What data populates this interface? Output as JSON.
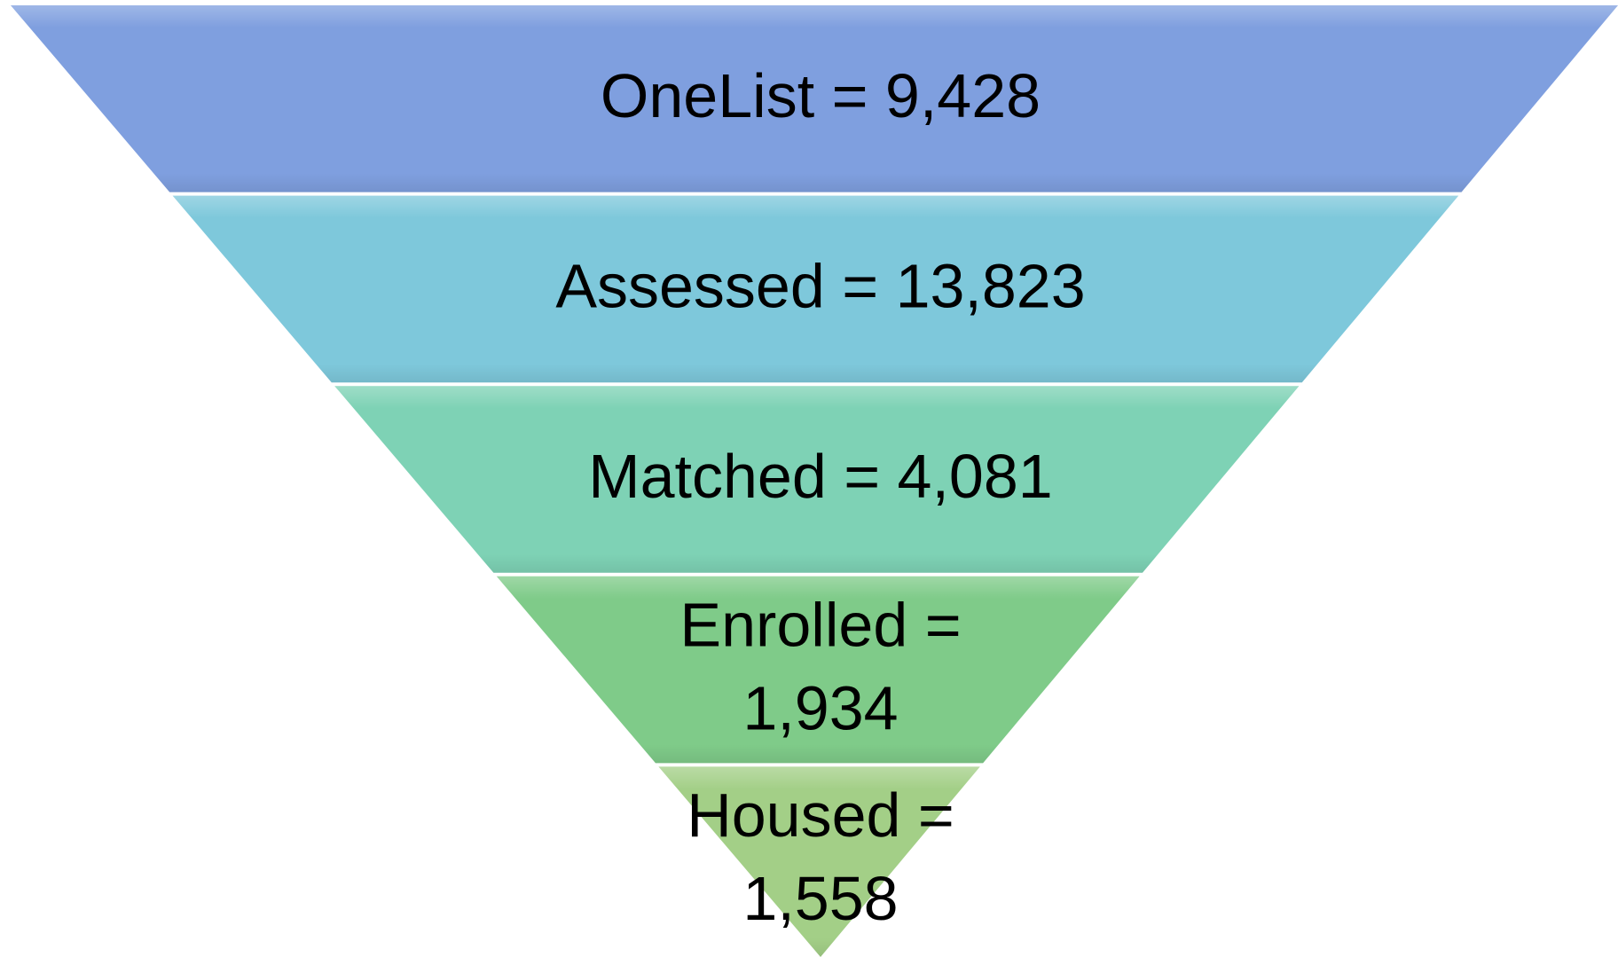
{
  "nodes": [
    {
      "lines": [
        "OneList = 9,428"
      ]
    },
    {
      "lines": [
        "Assessed = 13,823"
      ]
    },
    {
      "lines": [
        "Matched = 4,081"
      ]
    },
    {
      "lines": [
        "Enrolled =",
        "1,934"
      ]
    },
    {
      "lines": [
        "Housed =",
        "1,558"
      ]
    }
  ]
}
